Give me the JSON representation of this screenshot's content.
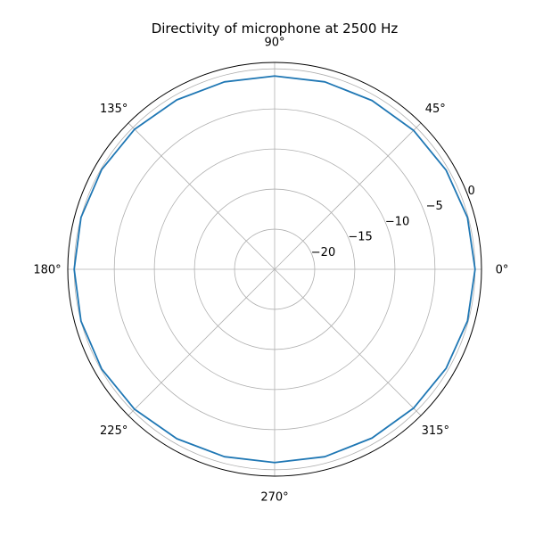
{
  "chart_data": {
    "type": "line",
    "projection": "polar",
    "title": "Directivity of microphone at 2500 Hz",
    "theta_unit": "degrees",
    "theta_tick_labels": [
      "0°",
      "45°",
      "90°",
      "135°",
      "180°",
      "225°",
      "270°",
      "315°"
    ],
    "theta_ticks": [
      0,
      45,
      90,
      135,
      180,
      225,
      270,
      315
    ],
    "r_ticks": [
      -20,
      -15,
      -10,
      -5,
      0
    ],
    "r_tick_labels": [
      "−20",
      "−15",
      "−10",
      "−5",
      "0"
    ],
    "r_tick_label_angle": 22.5,
    "rlim": [
      -25,
      0.8
    ],
    "grid": true,
    "series": [
      {
        "color": "#1f77b4",
        "theta": [
          0,
          15,
          30,
          45,
          60,
          75,
          90,
          105,
          120,
          135,
          150,
          165,
          180,
          195,
          210,
          225,
          240,
          255,
          270,
          285,
          300,
          315,
          330,
          345,
          360
        ],
        "r": [
          0.0,
          -0.1,
          -0.3,
          -0.5,
          -0.7,
          -0.8,
          -0.9,
          -0.8,
          -0.6,
          -0.3,
          -0.1,
          0.0,
          0.0,
          0.0,
          -0.1,
          -0.3,
          -0.6,
          -0.8,
          -0.9,
          -0.8,
          -0.7,
          -0.5,
          -0.3,
          -0.1,
          0.0
        ]
      }
    ]
  }
}
